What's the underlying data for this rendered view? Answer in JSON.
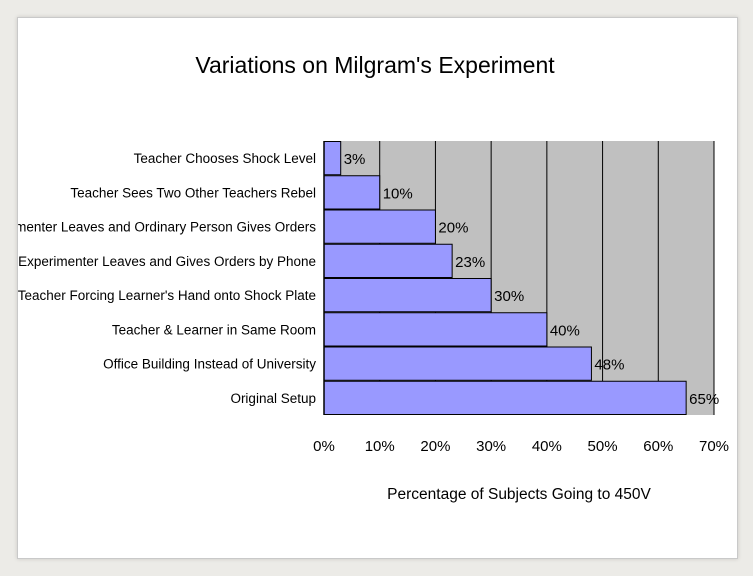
{
  "colors": {
    "plot_background": "#c0c0c0",
    "bar_fill": "#9999ff",
    "bar_stroke": "#000000",
    "page_background": "#ecebe7"
  },
  "chart_data": {
    "type": "bar",
    "orientation": "horizontal",
    "title": "Variations on Milgram's Experiment",
    "xlabel": "Percentage of Subjects Going to 450V",
    "ylabel": "",
    "categories": [
      "Teacher Chooses Shock Level",
      "Teacher Sees Two Other Teachers Rebel",
      "Experimenter Leaves and Ordinary Person Gives Orders",
      "Experimenter Leaves and Gives Orders by Phone",
      "Teacher Forcing Learner's Hand onto Shock Plate",
      "Teacher & Learner in Same Room",
      "Office Building Instead of University",
      "Original Setup"
    ],
    "values": [
      3,
      10,
      20,
      23,
      30,
      40,
      48,
      65
    ],
    "value_labels": [
      "3%",
      "10%",
      "20%",
      "23%",
      "30%",
      "40%",
      "48%",
      "65%"
    ],
    "xlim": [
      0,
      70
    ],
    "xticks": [
      0,
      10,
      20,
      30,
      40,
      50,
      60,
      70
    ],
    "xtick_labels": [
      "0%",
      "10%",
      "20%",
      "30%",
      "40%",
      "50%",
      "60%",
      "70%"
    ],
    "grid": "vertical",
    "legend": "none"
  }
}
